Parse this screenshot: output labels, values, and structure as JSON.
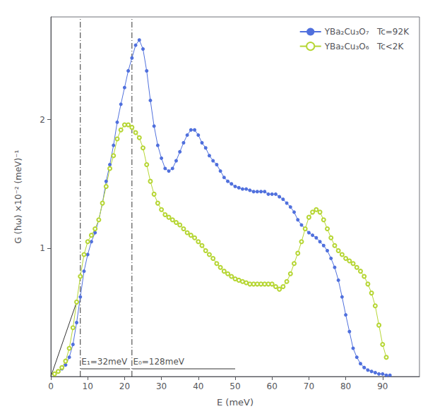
{
  "chart_data": {
    "type": "line",
    "xlabel": "E (meV)",
    "ylabel": "G (ħω) ×10⁻² (meV)⁻¹",
    "xlim": [
      0,
      100
    ],
    "ylim": [
      0,
      2.8
    ],
    "xticks": [
      0,
      10,
      20,
      30,
      40,
      50,
      60,
      70,
      80,
      90
    ],
    "yticks": [
      1,
      2
    ],
    "grid": false,
    "legend": "upper right",
    "series": [
      {
        "name": "YBa₂Cu₃O₇   Tc=92K",
        "marker": "filled_circle",
        "x": [
          1,
          2,
          3,
          4,
          5,
          6,
          7,
          8,
          9,
          10,
          11,
          12,
          13,
          14,
          15,
          16,
          17,
          18,
          19,
          20,
          21,
          22,
          23,
          24,
          25,
          26,
          27,
          28,
          29,
          30,
          31,
          32,
          33,
          34,
          35,
          36,
          37,
          38,
          39,
          40,
          41,
          42,
          43,
          44,
          45,
          46,
          47,
          48,
          49,
          50,
          51,
          52,
          53,
          54,
          55,
          56,
          57,
          58,
          59,
          60,
          61,
          62,
          63,
          64,
          65,
          66,
          67,
          68,
          69,
          70,
          71,
          72,
          73,
          74,
          75,
          76,
          77,
          78,
          79,
          80,
          81,
          82,
          83,
          84,
          85,
          86,
          87,
          88,
          89,
          90,
          91,
          92
        ],
        "values": [
          0.02,
          0.04,
          0.06,
          0.09,
          0.15,
          0.25,
          0.42,
          0.62,
          0.82,
          0.95,
          1.05,
          1.12,
          1.22,
          1.35,
          1.52,
          1.65,
          1.8,
          1.98,
          2.12,
          2.25,
          2.38,
          2.48,
          2.58,
          2.62,
          2.55,
          2.38,
          2.15,
          1.95,
          1.8,
          1.7,
          1.62,
          1.6,
          1.62,
          1.68,
          1.75,
          1.82,
          1.88,
          1.92,
          1.92,
          1.88,
          1.82,
          1.78,
          1.72,
          1.68,
          1.65,
          1.6,
          1.55,
          1.52,
          1.5,
          1.48,
          1.47,
          1.46,
          1.46,
          1.45,
          1.44,
          1.44,
          1.44,
          1.44,
          1.42,
          1.42,
          1.42,
          1.4,
          1.38,
          1.35,
          1.32,
          1.28,
          1.22,
          1.18,
          1.15,
          1.12,
          1.1,
          1.08,
          1.05,
          1.02,
          0.98,
          0.92,
          0.85,
          0.75,
          0.62,
          0.48,
          0.35,
          0.22,
          0.15,
          0.1,
          0.07,
          0.05,
          0.04,
          0.03,
          0.02,
          0.02,
          0.01,
          0.01
        ]
      },
      {
        "name": "YBa₂Cu₃O₆   Tc<2K",
        "marker": "open_circle",
        "x": [
          1,
          2,
          3,
          4,
          5,
          6,
          7,
          8,
          9,
          10,
          11,
          12,
          13,
          14,
          15,
          16,
          17,
          18,
          19,
          20,
          21,
          22,
          23,
          24,
          25,
          26,
          27,
          28,
          29,
          30,
          31,
          32,
          33,
          34,
          35,
          36,
          37,
          38,
          39,
          40,
          41,
          42,
          43,
          44,
          45,
          46,
          47,
          48,
          49,
          50,
          51,
          52,
          53,
          54,
          55,
          56,
          57,
          58,
          59,
          60,
          61,
          62,
          63,
          64,
          65,
          66,
          67,
          68,
          69,
          70,
          71,
          72,
          73,
          74,
          75,
          76,
          77,
          78,
          79,
          80,
          81,
          82,
          83,
          84,
          85,
          86,
          87,
          88,
          89,
          90,
          91
        ],
        "values": [
          0.02,
          0.04,
          0.07,
          0.12,
          0.22,
          0.38,
          0.58,
          0.78,
          0.95,
          1.05,
          1.1,
          1.15,
          1.22,
          1.35,
          1.48,
          1.62,
          1.72,
          1.85,
          1.92,
          1.96,
          1.96,
          1.94,
          1.9,
          1.86,
          1.78,
          1.65,
          1.52,
          1.42,
          1.35,
          1.3,
          1.26,
          1.24,
          1.22,
          1.2,
          1.18,
          1.15,
          1.12,
          1.1,
          1.08,
          1.05,
          1.02,
          0.98,
          0.95,
          0.92,
          0.88,
          0.85,
          0.82,
          0.8,
          0.78,
          0.76,
          0.75,
          0.74,
          0.73,
          0.72,
          0.72,
          0.72,
          0.72,
          0.72,
          0.72,
          0.72,
          0.7,
          0.68,
          0.7,
          0.74,
          0.8,
          0.88,
          0.96,
          1.05,
          1.15,
          1.24,
          1.28,
          1.3,
          1.28,
          1.22,
          1.15,
          1.08,
          1.02,
          0.98,
          0.95,
          0.92,
          0.9,
          0.88,
          0.85,
          0.82,
          0.78,
          0.72,
          0.65,
          0.55,
          0.4,
          0.25,
          0.15
        ]
      }
    ],
    "vlines": {
      "x": [
        8,
        22
      ],
      "line_style": "dashdot"
    },
    "lines": [
      {
        "x": [
          0,
          7
        ],
        "y": [
          0,
          0.58
        ]
      },
      {
        "x": [
          8.1,
          21.5
        ],
        "y": [
          0.06,
          0.06
        ]
      },
      {
        "x": [
          22.1,
          50.0
        ],
        "y": [
          0.06,
          0.06
        ]
      }
    ],
    "annotations": [
      {
        "text": "E₁=32meV",
        "x": 8.3,
        "y": 0.08
      },
      {
        "text": "E₀=128meV",
        "x": 22.3,
        "y": 0.08
      }
    ]
  }
}
